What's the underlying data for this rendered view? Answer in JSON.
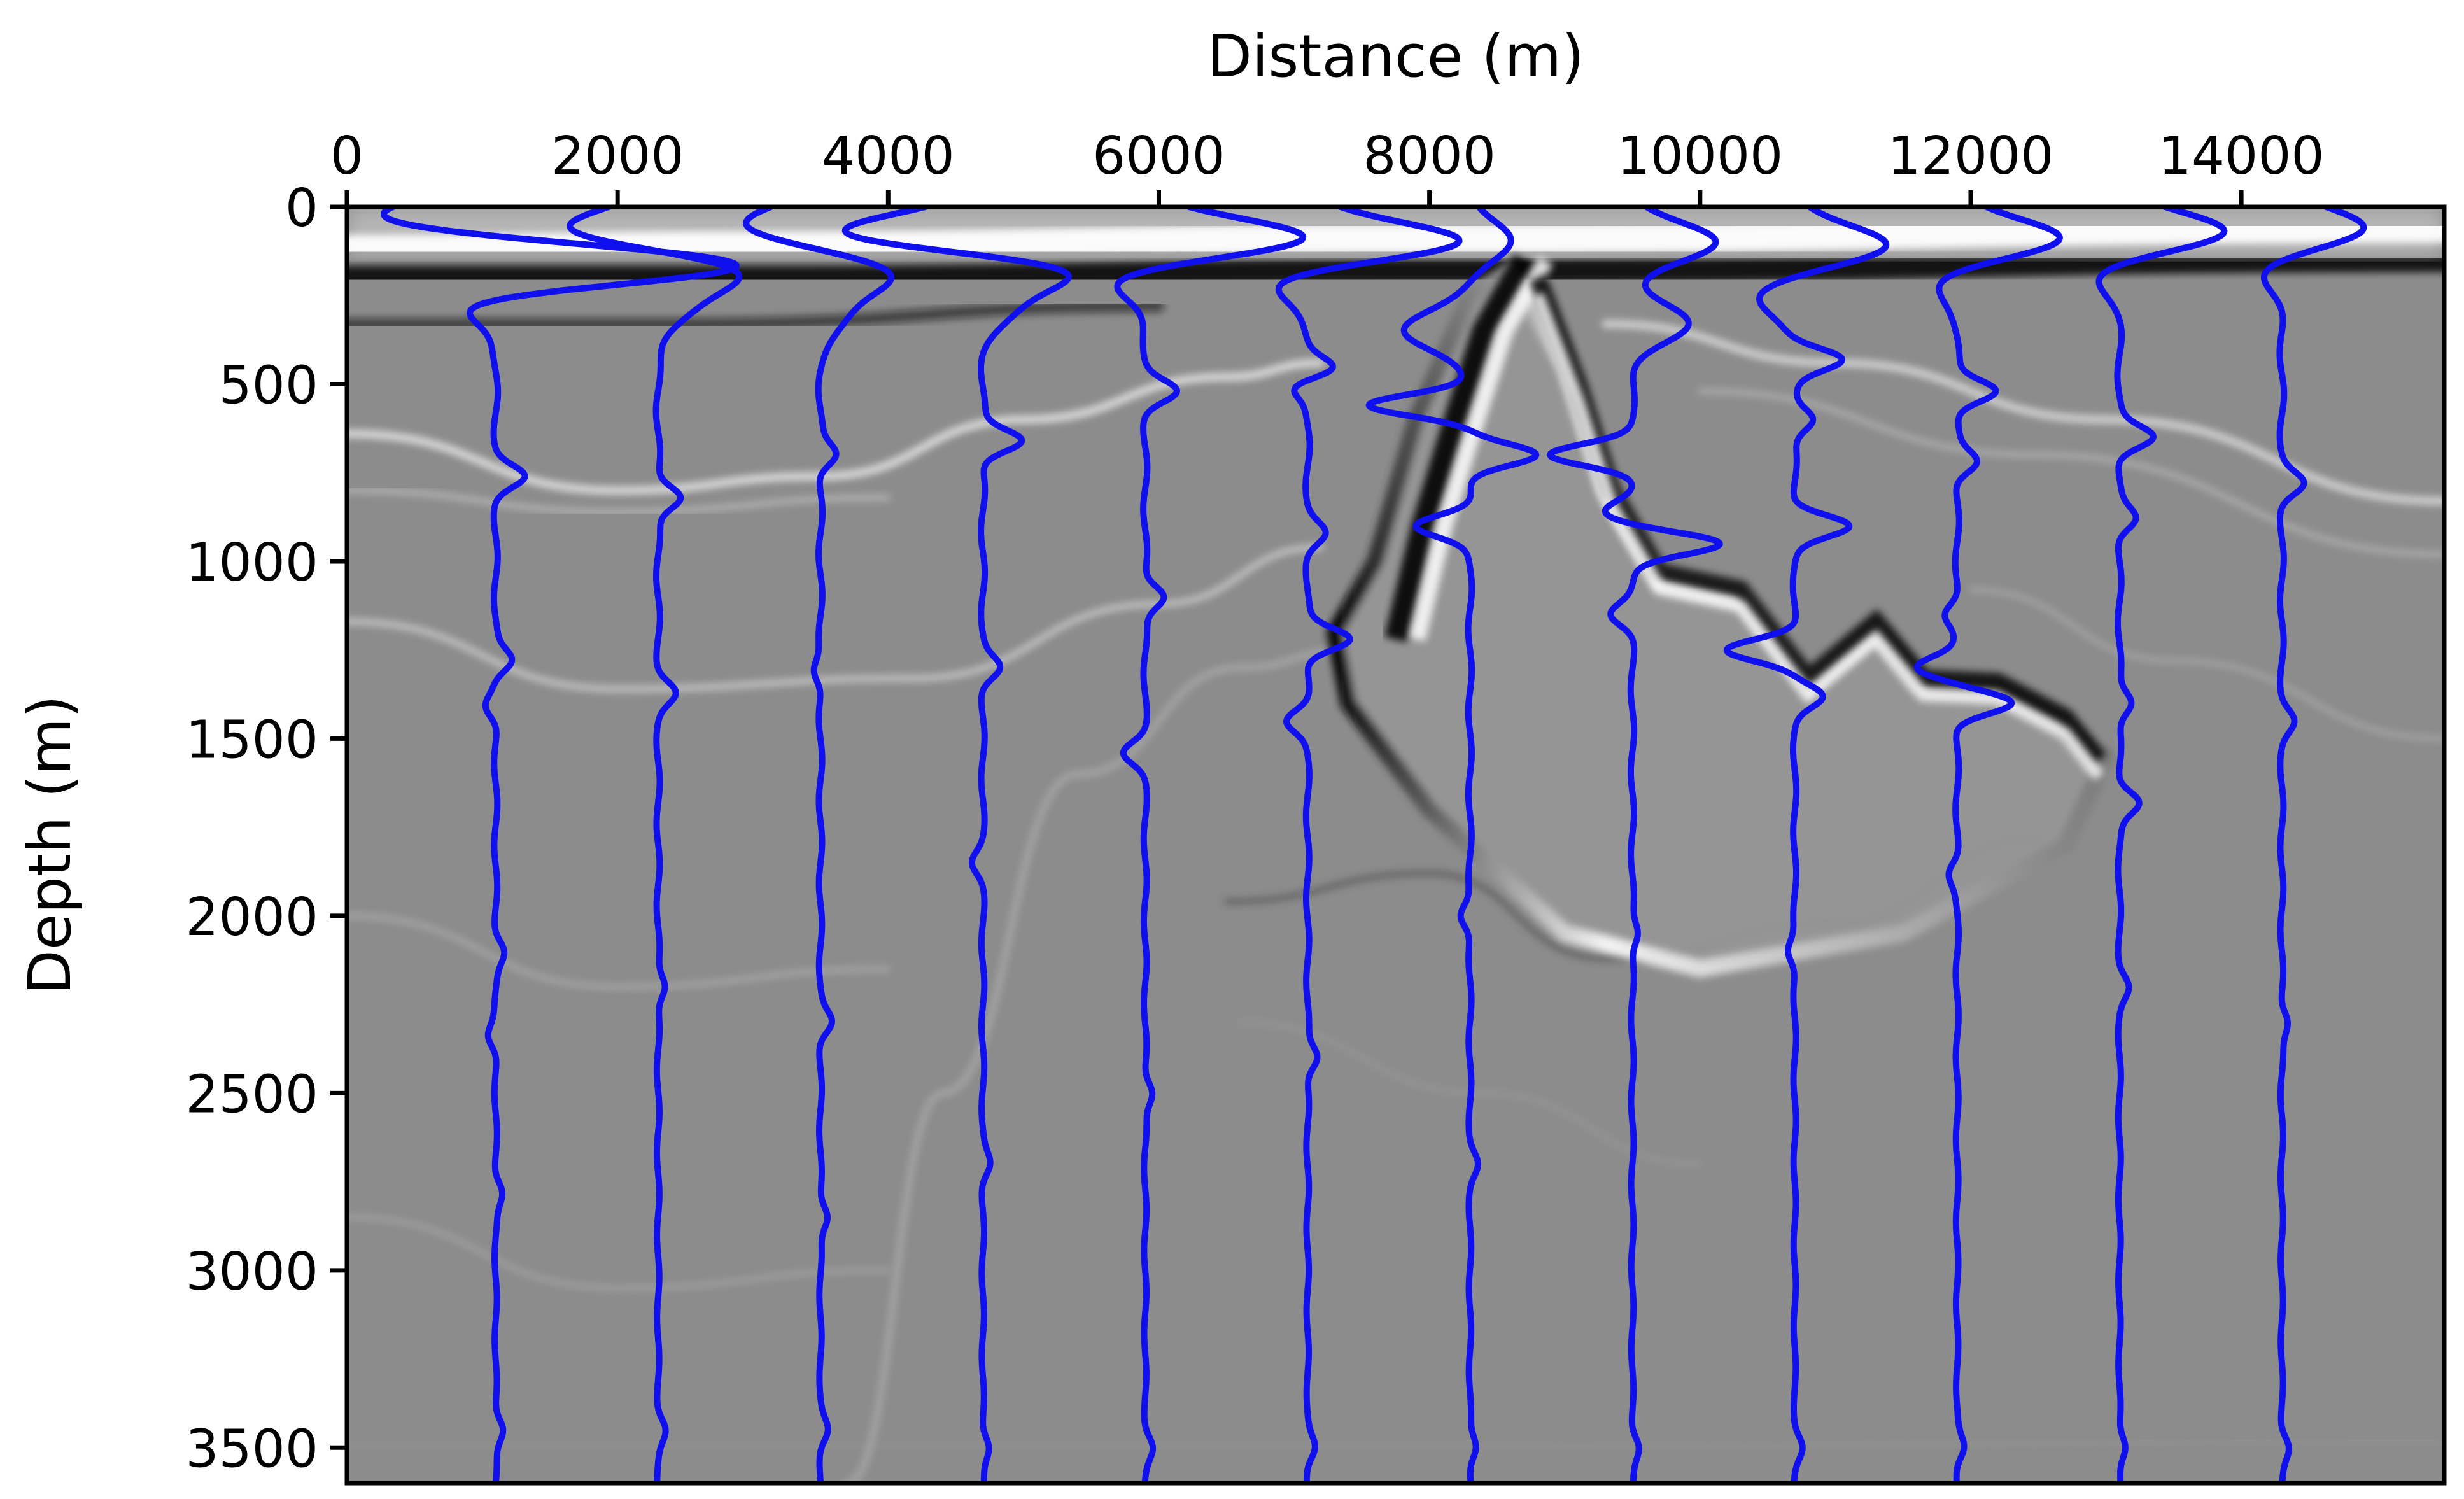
{
  "chart_data": {
    "type": "line",
    "title": "",
    "xlabel": "Distance (m)",
    "ylabel": "Depth (m)",
    "xlim": [
      0,
      15500
    ],
    "ylim": [
      3600,
      0
    ],
    "x_axis_position": "top",
    "x_ticks": [
      0,
      2000,
      4000,
      6000,
      8000,
      10000,
      12000,
      14000
    ],
    "y_ticks": [
      0,
      500,
      1000,
      1500,
      2000,
      2500,
      3000,
      3500
    ],
    "grid": false,
    "legend": "none",
    "background": "grayscale seismic image",
    "colors": {
      "trace": "#1010ee",
      "image_base": "#8c8c8c",
      "frame": "#000000"
    },
    "trace_offsets": {
      "description": "",
      "values": [
        1100,
        2300,
        3500,
        4700,
        5900,
        7100,
        8300,
        9500,
        10700,
        11900,
        13100,
        14300
      ]
    },
    "series": [
      {
        "x0": 1100,
        "events": [
          [
            30,
            -900
          ],
          [
            170,
            700
          ],
          [
            170,
            1300
          ],
          [
            250,
            -500
          ],
          [
            760,
            200
          ],
          [
            1280,
            120
          ],
          [
            1410,
            -80
          ],
          [
            2100,
            60
          ],
          [
            2340,
            -60
          ],
          [
            2780,
            50
          ],
          [
            3450,
            60
          ]
        ]
      },
      {
        "x0": 2300,
        "events": [
          [
            60,
            -700
          ],
          [
            180,
            600
          ],
          [
            290,
            200
          ],
          [
            820,
            180
          ],
          [
            1370,
            120
          ],
          [
            2200,
            60
          ],
          [
            3450,
            50
          ]
        ]
      },
      {
        "x0": 3500,
        "events": [
          [
            50,
            -550
          ],
          [
            190,
            500
          ],
          [
            300,
            180
          ],
          [
            700,
            120
          ],
          [
            1310,
            -60
          ],
          [
            2300,
            80
          ],
          [
            2850,
            60
          ],
          [
            3450,
            50
          ]
        ]
      },
      {
        "x0": 4700,
        "events": [
          [
            80,
            -1200
          ],
          [
            170,
            800
          ],
          [
            280,
            200
          ],
          [
            660,
            300
          ],
          [
            1300,
            120
          ],
          [
            1850,
            -70
          ],
          [
            2700,
            50
          ],
          [
            3500,
            50
          ]
        ]
      },
      {
        "x0": 5900,
        "events": [
          [
            90,
            1200
          ],
          [
            200,
            -300
          ],
          [
            520,
            220
          ],
          [
            1100,
            150
          ],
          [
            1540,
            -150
          ],
          [
            2500,
            60
          ],
          [
            3500,
            50
          ]
        ]
      },
      {
        "x0": 7100,
        "events": [
          [
            100,
            1200
          ],
          [
            200,
            -350
          ],
          [
            500,
            -150
          ],
          [
            460,
            220
          ],
          [
            920,
            120
          ],
          [
            1220,
            320
          ],
          [
            1450,
            -150
          ],
          [
            2400,
            80
          ],
          [
            3500,
            50
          ]
        ]
      },
      {
        "x0": 8300,
        "events": [
          [
            90,
            300
          ],
          [
            350,
            -500
          ],
          [
            560,
            -750
          ],
          [
            700,
            500
          ],
          [
            900,
            -400
          ],
          [
            2000,
            -80
          ],
          [
            2700,
            50
          ],
          [
            3500,
            50
          ]
        ]
      },
      {
        "x0": 9500,
        "events": [
          [
            100,
            600
          ],
          [
            330,
            400
          ],
          [
            700,
            -600
          ],
          [
            860,
            -200
          ],
          [
            950,
            650
          ],
          [
            1150,
            -150
          ],
          [
            2050,
            50
          ],
          [
            3500,
            50
          ]
        ]
      },
      {
        "x0": 10700,
        "events": [
          [
            110,
            700
          ],
          [
            250,
            -300
          ],
          [
            430,
            350
          ],
          [
            600,
            150
          ],
          [
            900,
            400
          ],
          [
            1250,
            -500
          ],
          [
            1380,
            200
          ],
          [
            2100,
            -60
          ],
          [
            3500,
            50
          ]
        ]
      },
      {
        "x0": 11900,
        "events": [
          [
            90,
            800
          ],
          [
            200,
            -200
          ],
          [
            520,
            300
          ],
          [
            720,
            150
          ],
          [
            1150,
            -100
          ],
          [
            1300,
            -300
          ],
          [
            1400,
            400
          ],
          [
            1880,
            -60
          ],
          [
            3500,
            50
          ]
        ]
      },
      {
        "x0": 13100,
        "events": [
          [
            70,
            800
          ],
          [
            180,
            -200
          ],
          [
            650,
            250
          ],
          [
            880,
            120
          ],
          [
            1400,
            100
          ],
          [
            1680,
            150
          ],
          [
            2200,
            60
          ],
          [
            3500,
            50
          ]
        ]
      },
      {
        "x0": 14300,
        "events": [
          [
            60,
            600
          ],
          [
            180,
            -150
          ],
          [
            780,
            150
          ],
          [
            1450,
            80
          ],
          [
            2300,
            50
          ],
          [
            3500,
            50
          ]
        ]
      }
    ]
  }
}
